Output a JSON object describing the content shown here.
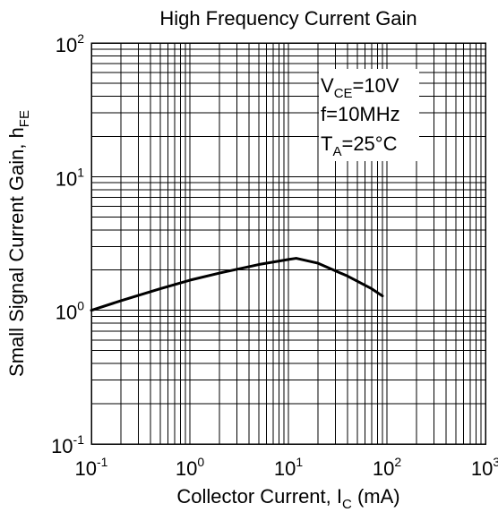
{
  "chart_data": {
    "type": "line",
    "title": "High Frequency Current Gain",
    "xlabel": {
      "main": "Collector Current, I",
      "sub": "C",
      "unit": " (mA)"
    },
    "ylabel": {
      "main": "Small Signal Current Gain, h",
      "sub": "FE"
    },
    "x_scale": "log",
    "y_scale": "log",
    "xlim": [
      0.1,
      1000
    ],
    "ylim": [
      0.1,
      100
    ],
    "grid": true,
    "x_ticks": [
      {
        "value": 0.1,
        "base": "10",
        "exp": "-1"
      },
      {
        "value": 1,
        "base": "10",
        "exp": "0"
      },
      {
        "value": 10,
        "base": "10",
        "exp": "1"
      },
      {
        "value": 100,
        "base": "10",
        "exp": "2"
      },
      {
        "value": 1000,
        "base": "10",
        "exp": "3"
      }
    ],
    "y_ticks": [
      {
        "value": 0.1,
        "base": "10",
        "exp": "-1"
      },
      {
        "value": 1,
        "base": "10",
        "exp": "0"
      },
      {
        "value": 10,
        "base": "10",
        "exp": "1"
      },
      {
        "value": 100,
        "base": "10",
        "exp": "2"
      }
    ],
    "annotations": [
      {
        "base": "V",
        "sub": "CE",
        "rest": "=10V"
      },
      {
        "base": "f=10MHz",
        "sub": "",
        "rest": ""
      },
      {
        "base": "T",
        "sub": "A",
        "rest": "=25°C"
      }
    ],
    "series": [
      {
        "x": [
          0.1,
          0.2,
          0.5,
          1,
          2,
          5,
          10,
          12,
          20,
          40,
          70,
          90
        ],
        "y": [
          1.0,
          1.18,
          1.45,
          1.68,
          1.9,
          2.2,
          2.4,
          2.45,
          2.25,
          1.8,
          1.45,
          1.28
        ]
      }
    ]
  }
}
